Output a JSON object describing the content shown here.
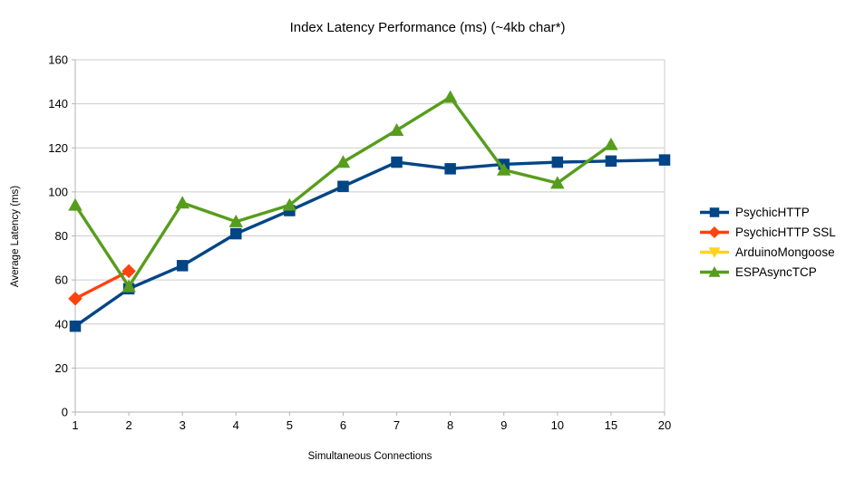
{
  "chart_data": {
    "type": "line",
    "title": "Index Latency Performance (ms) (~4kb char*)",
    "xlabel": "Simultaneous Connections",
    "ylabel": "Average Latency (ms)",
    "categories": [
      "1",
      "2",
      "3",
      "4",
      "5",
      "6",
      "7",
      "8",
      "9",
      "10",
      "15",
      "20"
    ],
    "y_ticks": [
      0,
      20,
      40,
      60,
      80,
      100,
      120,
      140,
      160
    ],
    "ylim": [
      0,
      160
    ],
    "grid": "horizontal",
    "legend_position": "right",
    "series": [
      {
        "name": "PsychicHTTP",
        "color": "#004586",
        "marker": "square",
        "values": [
          39,
          56,
          66.5,
          81,
          91.5,
          102.5,
          113.5,
          110.5,
          112.5,
          113.5,
          114,
          114.5
        ]
      },
      {
        "name": "PsychicHTTP SSL",
        "color": "#ff420e",
        "marker": "diamond",
        "values": [
          51.5,
          64
        ]
      },
      {
        "name": "ArduinoMongoose",
        "color": "#ffd320",
        "marker": "triangle-down",
        "values": []
      },
      {
        "name": "ESPAsyncTCP",
        "color": "#579d1c",
        "marker": "triangle-up",
        "values": [
          94,
          57,
          95,
          86.5,
          94,
          113.5,
          128,
          143,
          110,
          104,
          121.5
        ]
      }
    ]
  },
  "colors": {
    "grid": "#cccccc",
    "axis": "#b3b3b3",
    "text": "#000000",
    "background": "#ffffff"
  }
}
